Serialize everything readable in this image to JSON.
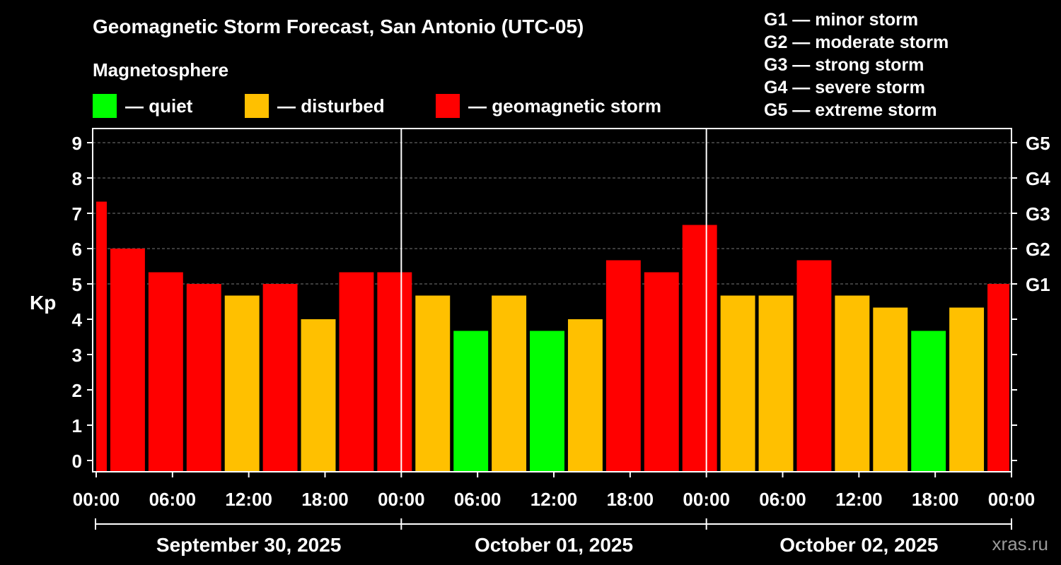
{
  "title": "Geomagnetic Storm Forecast, San Antonio (UTC-05)",
  "magnetosphere_label": "Magnetosphere",
  "legend": [
    {
      "label": "— quiet",
      "color": "#00ff00"
    },
    {
      "label": "— disturbed",
      "color": "#ffc000"
    },
    {
      "label": "— geomagnetic storm",
      "color": "#ff0000"
    }
  ],
  "storm_scale": [
    "G1 — minor storm",
    "G2 — moderate storm",
    "G3 — strong storm",
    "G4 — severe storm",
    "G5 — extreme storm"
  ],
  "credit": "xras.ru",
  "colors": {
    "quiet": "#00ff00",
    "disturbed": "#ffc000",
    "storm": "#ff0000",
    "background": "#000000",
    "axis": "#ffffff"
  },
  "chart_data": {
    "type": "bar",
    "ylabel": "Kp",
    "ylim": [
      0,
      9
    ],
    "yticks": [
      "0",
      "1",
      "2",
      "3",
      "4",
      "5",
      "6",
      "7",
      "8",
      "9"
    ],
    "right_ticks": [
      {
        "label": "G1",
        "kp": 5
      },
      {
        "label": "G2",
        "kp": 6
      },
      {
        "label": "G3",
        "kp": 7
      },
      {
        "label": "G4",
        "kp": 8
      },
      {
        "label": "G5",
        "kp": 9
      }
    ],
    "xticks": [
      "00:00",
      "06:00",
      "12:00",
      "18:00",
      "00:00",
      "06:00",
      "12:00",
      "18:00",
      "00:00",
      "06:00",
      "12:00",
      "18:00",
      "00:00"
    ],
    "days": [
      "September 30, 2025",
      "October 01, 2025",
      "October 02, 2025"
    ],
    "bars": [
      {
        "start_h": 0,
        "end_h": 1,
        "kp": 7.33,
        "level": "storm"
      },
      {
        "start_h": 1,
        "end_h": 4,
        "kp": 6.0,
        "level": "storm"
      },
      {
        "start_h": 4,
        "end_h": 7,
        "kp": 5.33,
        "level": "storm"
      },
      {
        "start_h": 7,
        "end_h": 10,
        "kp": 5.0,
        "level": "storm"
      },
      {
        "start_h": 10,
        "end_h": 13,
        "kp": 4.67,
        "level": "disturbed"
      },
      {
        "start_h": 13,
        "end_h": 16,
        "kp": 5.0,
        "level": "storm"
      },
      {
        "start_h": 16,
        "end_h": 19,
        "kp": 4.0,
        "level": "disturbed"
      },
      {
        "start_h": 19,
        "end_h": 22,
        "kp": 5.33,
        "level": "storm"
      },
      {
        "start_h": 22,
        "end_h": 25,
        "kp": 5.33,
        "level": "storm"
      },
      {
        "start_h": 25,
        "end_h": 28,
        "kp": 4.67,
        "level": "disturbed"
      },
      {
        "start_h": 28,
        "end_h": 31,
        "kp": 3.67,
        "level": "quiet"
      },
      {
        "start_h": 31,
        "end_h": 34,
        "kp": 4.67,
        "level": "disturbed"
      },
      {
        "start_h": 34,
        "end_h": 37,
        "kp": 3.67,
        "level": "quiet"
      },
      {
        "start_h": 37,
        "end_h": 40,
        "kp": 4.0,
        "level": "disturbed"
      },
      {
        "start_h": 40,
        "end_h": 43,
        "kp": 5.67,
        "level": "storm"
      },
      {
        "start_h": 43,
        "end_h": 46,
        "kp": 5.33,
        "level": "storm"
      },
      {
        "start_h": 46,
        "end_h": 49,
        "kp": 6.67,
        "level": "storm"
      },
      {
        "start_h": 49,
        "end_h": 52,
        "kp": 4.67,
        "level": "disturbed"
      },
      {
        "start_h": 52,
        "end_h": 55,
        "kp": 4.67,
        "level": "disturbed"
      },
      {
        "start_h": 55,
        "end_h": 58,
        "kp": 5.67,
        "level": "storm"
      },
      {
        "start_h": 58,
        "end_h": 61,
        "kp": 4.67,
        "level": "disturbed"
      },
      {
        "start_h": 61,
        "end_h": 64,
        "kp": 4.33,
        "level": "disturbed"
      },
      {
        "start_h": 64,
        "end_h": 67,
        "kp": 3.67,
        "level": "quiet"
      },
      {
        "start_h": 67,
        "end_h": 70,
        "kp": 4.33,
        "level": "disturbed"
      },
      {
        "start_h": 70,
        "end_h": 72,
        "kp": 5.0,
        "level": "storm"
      }
    ]
  }
}
